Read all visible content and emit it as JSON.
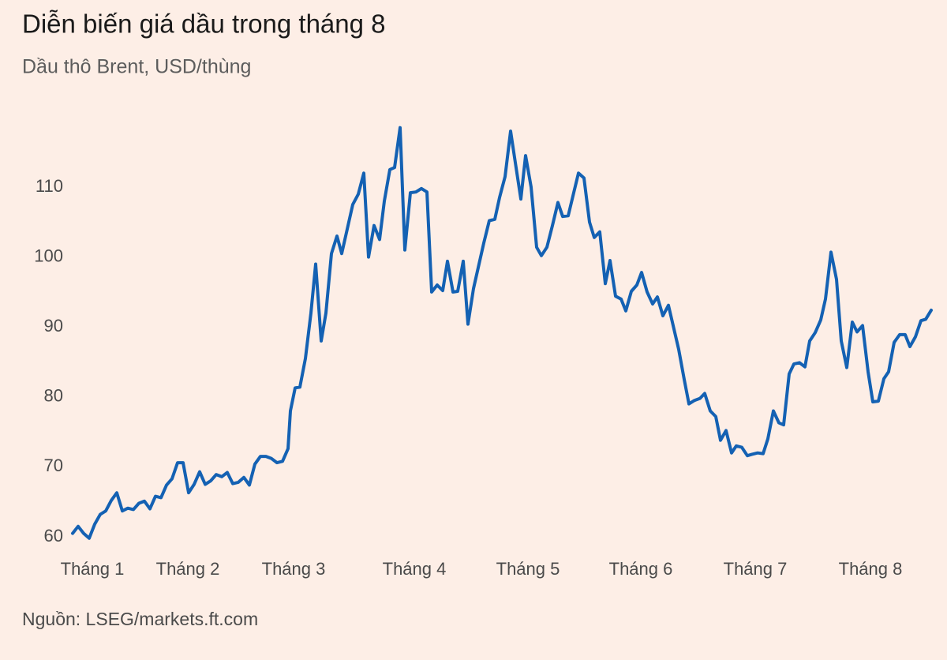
{
  "chart_data": {
    "type": "line",
    "title": "Diễn biến giá dầu trong tháng 8",
    "subtitle": "Dầu thô Brent, USD/thùng",
    "source": "Nguồn: LSEG/markets.ft.com",
    "x": [
      0,
      7,
      14,
      21,
      28,
      35,
      42,
      49,
      56,
      63,
      70,
      77,
      84,
      91,
      98,
      105,
      112,
      119,
      126,
      133,
      140,
      147,
      154,
      161,
      168,
      175,
      182,
      189,
      196,
      203,
      210,
      217,
      224,
      231,
      238,
      245,
      252,
      259,
      266,
      273,
      276,
      282,
      288,
      295,
      302,
      308,
      315,
      321,
      328,
      335,
      341,
      348,
      355,
      362,
      369,
      375,
      382,
      389,
      395,
      402,
      408,
      415,
      421,
      428,
      435,
      442,
      449,
      455,
      462,
      469,
      475,
      482,
      488,
      495,
      501,
      508,
      515,
      521,
      528,
      535,
      541,
      548,
      555,
      561,
      568,
      574,
      581,
      588,
      594,
      601,
      608,
      615,
      621,
      628,
      635,
      641,
      648,
      655,
      661,
      668,
      675,
      681,
      688,
      695,
      701,
      708,
      715,
      721,
      728,
      735,
      741,
      748,
      755,
      761,
      768,
      775,
      781,
      788,
      795,
      801,
      808,
      815,
      821,
      828,
      835,
      841,
      848,
      855,
      861,
      868,
      875,
      881,
      888,
      895,
      901,
      908,
      914,
      921,
      928,
      934,
      941,
      948,
      954,
      961,
      968,
      974,
      981,
      988,
      994,
      1001,
      1008,
      1014,
      1021,
      1028,
      1034,
      1041,
      1048,
      1055,
      1061,
      1068,
      1075,
      1081,
      1088
    ],
    "series": [
      {
        "name": "Dầu thô Brent",
        "color": "#1461b3",
        "values": [
          60.5,
          61.5,
          60.5,
          59.8,
          61.8,
          63.2,
          63.7,
          65.2,
          66.3,
          63.7,
          64.1,
          63.9,
          64.8,
          65.1,
          64.0,
          65.8,
          65.6,
          67.4,
          68.3,
          70.6,
          70.6,
          66.3,
          67.5,
          69.3,
          67.5,
          68.0,
          68.9,
          68.6,
          69.2,
          67.6,
          67.8,
          68.5,
          67.4,
          70.4,
          71.5,
          71.5,
          71.2,
          70.6,
          70.8,
          72.6,
          78,
          81.3,
          81.4,
          85.5,
          92,
          99,
          88,
          92,
          100.5,
          103,
          100.5,
          104,
          107.5,
          109,
          112,
          100,
          104.5,
          102.5,
          108,
          112.5,
          112.8,
          118.5,
          101,
          109.2,
          109.3,
          109.8,
          109.3,
          95,
          96,
          95.2,
          99.4,
          95,
          95.1,
          99.4,
          90.4,
          95.5,
          99,
          102,
          105.2,
          105.4,
          108.5,
          111.5,
          118,
          113.5,
          108.3,
          114.5,
          110,
          101.4,
          100.2,
          101.4,
          104.5,
          107.8,
          105.8,
          105.9,
          109.2,
          112,
          111.3,
          105,
          102.8,
          103.6,
          96.2,
          99.5,
          94.4,
          94,
          92.3,
          95.1,
          96,
          97.8,
          95,
          93.3,
          94.3,
          91.6,
          93.1,
          90.2,
          86.8,
          82.5,
          79,
          79.5,
          79.8,
          80.5,
          78,
          77.2,
          73.8,
          75.2,
          72,
          73,
          72.8,
          71.6,
          71.8,
          72,
          71.9,
          74,
          78,
          76.3,
          76,
          83.3,
          84.7,
          84.9,
          84.3,
          88,
          89.2,
          91,
          94,
          100.7,
          96.8,
          88,
          84.2,
          90.7,
          89.3,
          90.2,
          83.6,
          79.3,
          79.4,
          82.6,
          83.6,
          87.8,
          88.9,
          88.9,
          87.2,
          88.6,
          90.9,
          91.1,
          92.4
        ]
      }
    ],
    "xlim": [
      0,
      1088
    ],
    "xticks": [
      {
        "value": 25,
        "label": "Tháng 1"
      },
      {
        "value": 146,
        "label": "Tháng 2"
      },
      {
        "value": 280,
        "label": "Tháng 3"
      },
      {
        "value": 433,
        "label": "Tháng 4"
      },
      {
        "value": 577,
        "label": "Tháng 5"
      },
      {
        "value": 720,
        "label": "Tháng 6"
      },
      {
        "value": 865,
        "label": "Tháng 7"
      },
      {
        "value": 1011,
        "label": "Tháng 8"
      }
    ],
    "ylim": [
      58,
      120
    ],
    "yticks": [
      60,
      70,
      80,
      90,
      100,
      110
    ],
    "grid": false
  }
}
